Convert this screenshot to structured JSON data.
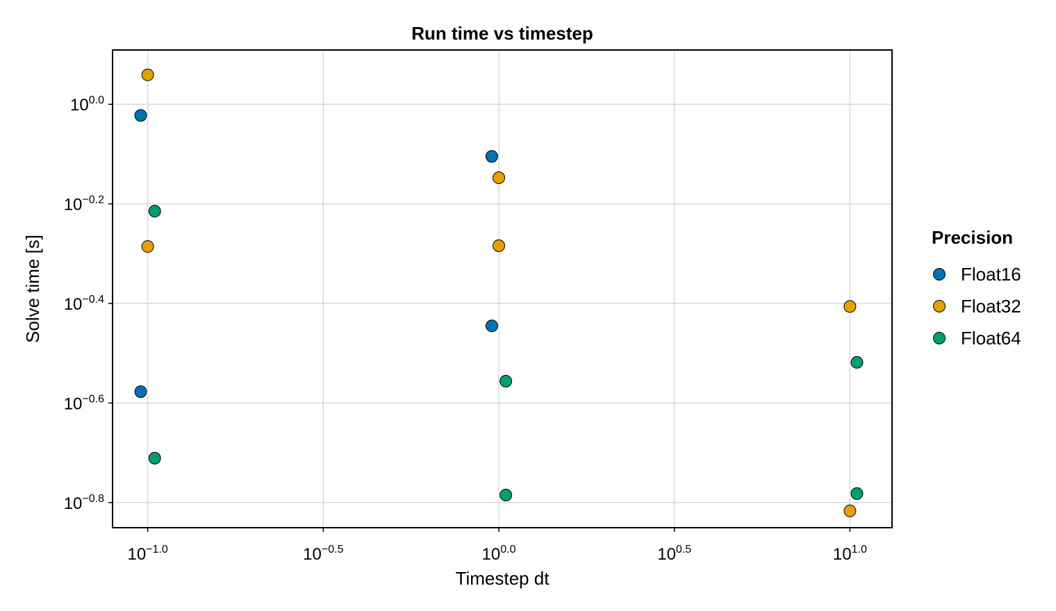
{
  "chart_data": {
    "type": "scatter",
    "title": "Run time vs timestep",
    "xlabel": "Timestep dt",
    "ylabel": "Solve time [s]",
    "xscale": "log10",
    "yscale": "log10",
    "xlim": [
      0.0794,
      13.18
    ],
    "ylim": [
      0.1411,
      1.2857
    ],
    "x_ticks": [
      {
        "value": 0.1,
        "base": "10",
        "exp": "−1.0"
      },
      {
        "value": 0.31623,
        "base": "10",
        "exp": "−0.5"
      },
      {
        "value": 1.0,
        "base": "10",
        "exp": "0.0"
      },
      {
        "value": 3.16228,
        "base": "10",
        "exp": "0.5"
      },
      {
        "value": 10.0,
        "base": "10",
        "exp": "1.0"
      }
    ],
    "y_ticks": [
      {
        "value": 1.0,
        "base": "10",
        "exp": "0.0"
      },
      {
        "value": 0.63096,
        "base": "10",
        "exp": "−0.2"
      },
      {
        "value": 0.39811,
        "base": "10",
        "exp": "−0.4"
      },
      {
        "value": 0.25119,
        "base": "10",
        "exp": "−0.6"
      },
      {
        "value": 0.15849,
        "base": "10",
        "exp": "−0.8"
      }
    ],
    "grid": true,
    "legend_title": "Precision",
    "legend_position": "right",
    "series": [
      {
        "name": "Float16",
        "color": "#0072b2",
        "points": [
          {
            "x": 0.0955,
            "y": 0.95
          },
          {
            "x": 0.0955,
            "y": 0.2647
          },
          {
            "x": 0.955,
            "y": 0.786
          },
          {
            "x": 0.955,
            "y": 0.3589
          }
        ]
      },
      {
        "name": "Float32",
        "color": "#e69f00",
        "points": [
          {
            "x": 0.1,
            "y": 1.146
          },
          {
            "x": 0.1,
            "y": 0.518
          },
          {
            "x": 1.0,
            "y": 0.712
          },
          {
            "x": 1.0,
            "y": 0.52
          },
          {
            "x": 10.0,
            "y": 0.3926
          },
          {
            "x": 10.0,
            "y": 0.1525
          }
        ]
      },
      {
        "name": "Float64",
        "color": "#009e73",
        "points": [
          {
            "x": 0.1047,
            "y": 0.61
          },
          {
            "x": 0.1047,
            "y": 0.1946
          },
          {
            "x": 1.047,
            "y": 0.2779
          },
          {
            "x": 1.047,
            "y": 0.1641
          },
          {
            "x": 10.47,
            "y": 0.3031
          },
          {
            "x": 10.47,
            "y": 0.1652
          }
        ]
      }
    ]
  }
}
